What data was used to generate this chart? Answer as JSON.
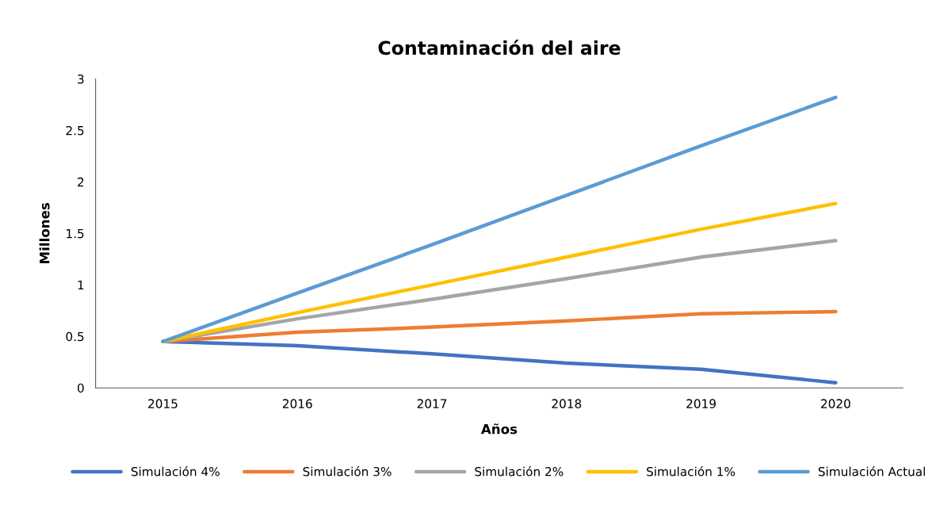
{
  "chart_data": {
    "type": "line",
    "title": "Contaminación del aire",
    "xlabel": "Años",
    "ylabel": "Millones",
    "categories": [
      "2015",
      "2016",
      "2017",
      "2018",
      "2019",
      "2020"
    ],
    "series": [
      {
        "name": "Simulación 4%",
        "color": "#4472c4",
        "values": [
          0.45,
          0.41,
          0.33,
          0.24,
          0.18,
          0.05
        ]
      },
      {
        "name": "Simulación 3%",
        "color": "#ed7d31",
        "values": [
          0.45,
          0.54,
          0.59,
          0.65,
          0.72,
          0.74
        ]
      },
      {
        "name": "Simulación 2%",
        "color": "#a5a5a5",
        "values": [
          0.45,
          0.67,
          0.86,
          1.06,
          1.27,
          1.43
        ]
      },
      {
        "name": "Simulación 1%",
        "color": "#ffc000",
        "values": [
          0.45,
          0.73,
          1.0,
          1.27,
          1.54,
          1.79
        ]
      },
      {
        "name": "Simulación Actual",
        "color": "#5b9bd5",
        "values": [
          0.45,
          0.92,
          1.39,
          1.87,
          2.35,
          2.82
        ]
      }
    ],
    "ylim": [
      0,
      3
    ],
    "yticks": [
      0,
      0.5,
      1,
      1.5,
      2,
      2.5,
      3
    ],
    "grid": false,
    "legend": "bottom",
    "marker": "none",
    "line_style": "solid"
  }
}
